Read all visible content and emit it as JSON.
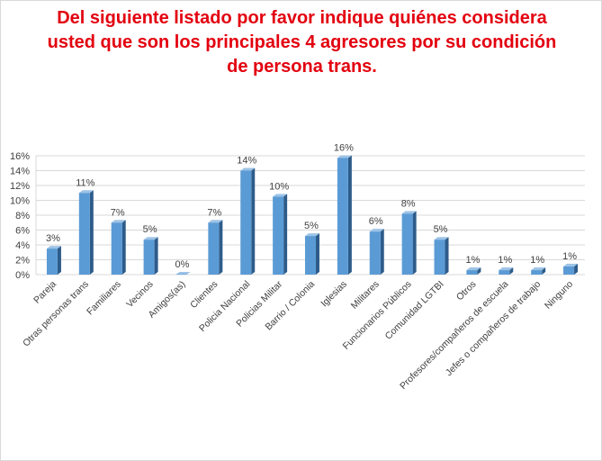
{
  "title_lines": [
    "Del siguiente listado  por favor indique  quiénes considera",
    "usted  que son  los  principales  4 agresores  por su condición",
    "de persona  trans."
  ],
  "colors": {
    "title": "#e3000f",
    "bar_front": "#5b9bd5",
    "bar_side": "#2e5c8a",
    "bar_top": "#9dc3e6",
    "grid": "#d9d9d9",
    "axis_text": "#404040"
  },
  "chart_data": {
    "type": "bar",
    "title": "Del siguiente listado  por favor indique  quiénes considera usted  que son  los  principales  4 agresores  por su condición de persona  trans.",
    "xlabel": "",
    "ylabel": "",
    "ylim": [
      0,
      0.16
    ],
    "grid": true,
    "legend": "none",
    "y_ticks": [
      "0%",
      "2%",
      "4%",
      "6%",
      "8%",
      "10%",
      "12%",
      "14%",
      "16%"
    ],
    "categories": [
      "Pareja",
      "Otras personas trans",
      "Familiares",
      "Vecinos",
      "Amigos(as)",
      "Clientes",
      "Policia Nacional",
      "Policias Militar",
      "Barrio / Colonia",
      "Iglesias",
      "Militares",
      "Funcionarios Públicos",
      "Comunidad LGTBI",
      "Otros",
      "Profesores/compañeros de escuela",
      "Jefes o compañeros de trabajo",
      "Ninguno"
    ],
    "values": [
      0.035,
      0.11,
      0.07,
      0.047,
      0.0,
      0.07,
      0.14,
      0.105,
      0.052,
      0.157,
      0.058,
      0.082,
      0.047,
      0.006,
      0.006,
      0.006,
      0.011
    ],
    "labels": [
      "3%",
      "11%",
      "7%",
      "5%",
      "0%",
      "7%",
      "14%",
      "10%",
      "5%",
      "16%",
      "6%",
      "8%",
      "5%",
      "1%",
      "1%",
      "1%",
      "1%"
    ]
  }
}
